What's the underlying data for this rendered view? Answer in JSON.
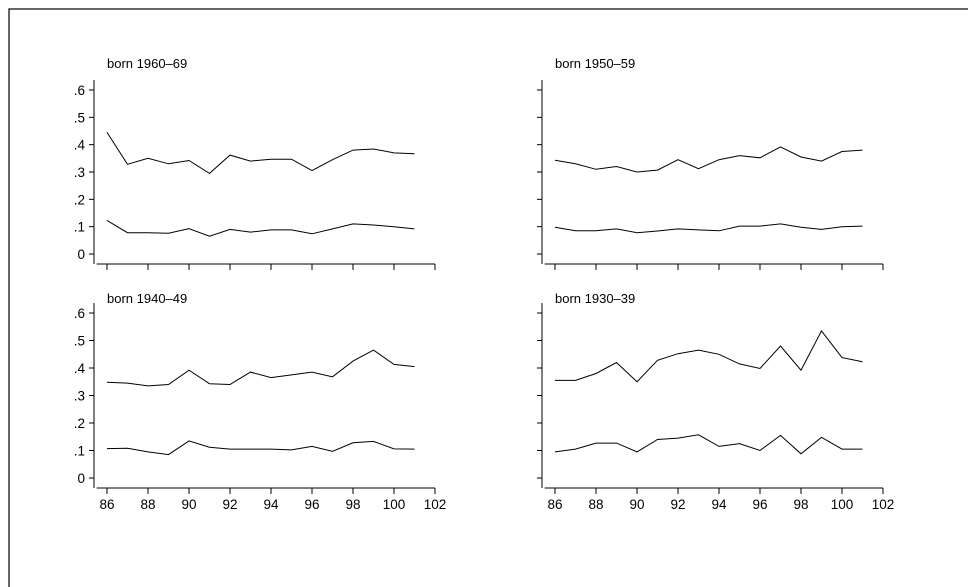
{
  "chart_data": [
    {
      "type": "line",
      "title": "born 1960–69",
      "x": [
        86,
        87,
        88,
        89,
        90,
        91,
        92,
        93,
        94,
        95,
        96,
        97,
        98,
        99,
        100,
        101
      ],
      "xlim": [
        85.5,
        102
      ],
      "xticks": [
        86,
        88,
        90,
        92,
        94,
        96,
        98,
        100,
        102
      ],
      "ylim": [
        0,
        0.6
      ],
      "yticks": [
        0,
        0.1,
        0.2,
        0.3,
        0.4,
        0.5,
        0.6
      ],
      "ytick_labels": [
        "0",
        ".1",
        ".2",
        ".3",
        ".4",
        ".5",
        ".6"
      ],
      "show_ytick_labels": true,
      "show_xtick_labels": false,
      "series": [
        {
          "values": [
            0.445,
            0.328,
            0.35,
            0.33,
            0.342,
            0.295,
            0.362,
            0.34,
            0.347,
            0.347,
            0.305,
            0.345,
            0.38,
            0.384,
            0.37,
            0.367
          ]
        },
        {
          "values": [
            0.123,
            0.078,
            0.078,
            0.076,
            0.093,
            0.065,
            0.09,
            0.08,
            0.088,
            0.088,
            0.074,
            0.092,
            0.11,
            0.106,
            0.1,
            0.092
          ]
        }
      ]
    },
    {
      "type": "line",
      "title": "born 1950–59",
      "x": [
        86,
        87,
        88,
        89,
        90,
        91,
        92,
        93,
        94,
        95,
        96,
        97,
        98,
        99,
        100,
        101
      ],
      "xlim": [
        85.5,
        102
      ],
      "xticks": [
        86,
        88,
        90,
        92,
        94,
        96,
        98,
        100,
        102
      ],
      "ylim": [
        0,
        0.6
      ],
      "yticks": [
        0,
        0.1,
        0.2,
        0.3,
        0.4,
        0.5,
        0.6
      ],
      "ytick_labels": [
        "0",
        ".1",
        ".2",
        ".3",
        ".4",
        ".5",
        ".6"
      ],
      "show_ytick_labels": false,
      "show_xtick_labels": false,
      "series": [
        {
          "values": [
            0.343,
            0.33,
            0.31,
            0.32,
            0.3,
            0.307,
            0.345,
            0.312,
            0.345,
            0.36,
            0.352,
            0.392,
            0.355,
            0.34,
            0.375,
            0.38
          ]
        },
        {
          "values": [
            0.098,
            0.085,
            0.085,
            0.092,
            0.078,
            0.084,
            0.092,
            0.088,
            0.085,
            0.102,
            0.102,
            0.11,
            0.098,
            0.09,
            0.1,
            0.102
          ]
        }
      ]
    },
    {
      "type": "line",
      "title": "born 1940–49",
      "x": [
        86,
        87,
        88,
        89,
        90,
        91,
        92,
        93,
        94,
        95,
        96,
        97,
        98,
        99,
        100,
        101
      ],
      "xlim": [
        85.5,
        102
      ],
      "xticks": [
        86,
        88,
        90,
        92,
        94,
        96,
        98,
        100,
        102
      ],
      "ylim": [
        0,
        0.6
      ],
      "yticks": [
        0,
        0.1,
        0.2,
        0.3,
        0.4,
        0.5,
        0.6
      ],
      "ytick_labels": [
        "0",
        ".1",
        ".2",
        ".3",
        ".4",
        ".5",
        ".6"
      ],
      "show_ytick_labels": true,
      "show_xtick_labels": true,
      "series": [
        {
          "values": [
            0.348,
            0.345,
            0.335,
            0.34,
            0.392,
            0.343,
            0.34,
            0.385,
            0.365,
            0.375,
            0.385,
            0.368,
            0.425,
            0.465,
            0.413,
            0.405
          ]
        },
        {
          "values": [
            0.107,
            0.108,
            0.095,
            0.085,
            0.135,
            0.112,
            0.105,
            0.105,
            0.105,
            0.102,
            0.115,
            0.097,
            0.128,
            0.133,
            0.106,
            0.105
          ]
        }
      ]
    },
    {
      "type": "line",
      "title": "born 1930–39",
      "x": [
        86,
        87,
        88,
        89,
        90,
        91,
        92,
        93,
        94,
        95,
        96,
        97,
        98,
        99,
        100,
        101
      ],
      "xlim": [
        85.5,
        102
      ],
      "xticks": [
        86,
        88,
        90,
        92,
        94,
        96,
        98,
        100,
        102
      ],
      "ylim": [
        0,
        0.6
      ],
      "yticks": [
        0,
        0.1,
        0.2,
        0.3,
        0.4,
        0.5,
        0.6
      ],
      "ytick_labels": [
        "0",
        ".1",
        ".2",
        ".3",
        ".4",
        ".5",
        ".6"
      ],
      "show_ytick_labels": false,
      "show_xtick_labels": true,
      "series": [
        {
          "values": [
            0.355,
            0.355,
            0.38,
            0.42,
            0.35,
            0.428,
            0.452,
            0.465,
            0.45,
            0.415,
            0.398,
            0.48,
            0.392,
            0.535,
            0.438,
            0.423
          ]
        },
        {
          "values": [
            0.095,
            0.105,
            0.127,
            0.127,
            0.095,
            0.14,
            0.145,
            0.157,
            0.115,
            0.125,
            0.1,
            0.155,
            0.088,
            0.148,
            0.105,
            0.105
          ]
        }
      ]
    }
  ]
}
